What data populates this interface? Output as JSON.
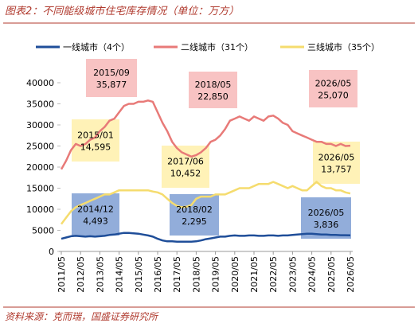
{
  "chart_data": {
    "type": "line",
    "title": "图表2：不同能级城市住宅库存情况（单位：万方）",
    "source": "资料来源：克而瑞，国盛证券研究所",
    "x": [
      "2011/05",
      "2011/08",
      "2011/11",
      "2012/02",
      "2012/05",
      "2012/08",
      "2012/11",
      "2013/02",
      "2013/05",
      "2013/08",
      "2013/11",
      "2014/02",
      "2014/05",
      "2014/08",
      "2014/11",
      "2015/02",
      "2015/05",
      "2015/08",
      "2015/11",
      "2016/02",
      "2016/05",
      "2016/08",
      "2016/11",
      "2017/02",
      "2017/05",
      "2017/08",
      "2017/11",
      "2018/02",
      "2018/05",
      "2018/08",
      "2018/11",
      "2019/02",
      "2019/05",
      "2019/08",
      "2019/11",
      "2020/02",
      "2020/05",
      "2020/08",
      "2020/11",
      "2021/02",
      "2021/05",
      "2021/08",
      "2021/11",
      "2022/02",
      "2022/05",
      "2022/08",
      "2022/11",
      "2023/02",
      "2023/05",
      "2023/08",
      "2023/11",
      "2024/02",
      "2024/05",
      "2024/08",
      "2024/11",
      "2025/02",
      "2025/05",
      "2025/08",
      "2025/11",
      "2026/02",
      "2026/05"
    ],
    "xticks": [
      "2011/05",
      "2012/05",
      "2013/05",
      "2014/05",
      "2015/05",
      "2016/05",
      "2017/05",
      "2018/05",
      "2019/05",
      "2020/05",
      "2021/05",
      "2022/05",
      "2023/05",
      "2024/05",
      "2025/05",
      "2026/05"
    ],
    "ylim": [
      0,
      40000
    ],
    "yticks": [
      0,
      5000,
      10000,
      15000,
      20000,
      25000,
      30000,
      35000,
      40000
    ],
    "grid": false,
    "series": [
      {
        "name": "一线城市（4个）",
        "color": "#1f4e99",
        "values": [
          3000,
          3300,
          3600,
          3700,
          3600,
          3500,
          3600,
          3500,
          3600,
          3700,
          3900,
          4000,
          4200,
          4400,
          4400,
          4300,
          4200,
          4000,
          3800,
          3500,
          3000,
          2600,
          2400,
          2400,
          2300,
          2300,
          2300,
          2295,
          2400,
          2600,
          2900,
          3100,
          3300,
          3500,
          3500,
          3700,
          3800,
          3700,
          3700,
          3800,
          3800,
          3700,
          3700,
          3800,
          3800,
          3700,
          3800,
          3800,
          3900,
          4000,
          4100,
          4200,
          4200,
          4100,
          4000,
          4000,
          3900,
          3900,
          3850,
          3850,
          3836
        ]
      },
      {
        "name": "二线城市（31个）",
        "color": "#e87a78",
        "values": [
          19500,
          21500,
          24000,
          25500,
          25000,
          25500,
          26500,
          27000,
          28500,
          29500,
          31000,
          31500,
          33000,
          34500,
          35000,
          35000,
          35500,
          35500,
          35800,
          35500,
          33000,
          30500,
          28500,
          26000,
          24500,
          23500,
          23000,
          22500,
          22850,
          23500,
          24500,
          26000,
          26500,
          27500,
          29000,
          31000,
          31500,
          32000,
          31500,
          31000,
          32000,
          31500,
          31000,
          32000,
          32200,
          31500,
          30500,
          30000,
          28500,
          28000,
          27500,
          27000,
          26500,
          26000,
          26000,
          25500,
          25500,
          25000,
          25500,
          25000,
          25070
        ]
      },
      {
        "name": "三线城市（35个）",
        "color": "#f5dc6e",
        "values": [
          6500,
          8000,
          9500,
          10500,
          11000,
          11500,
          12000,
          12500,
          13000,
          13500,
          13500,
          14000,
          14500,
          14500,
          14500,
          14500,
          14500,
          14500,
          14500,
          14200,
          14000,
          13500,
          12500,
          11500,
          10800,
          10500,
          10600,
          11000,
          12500,
          13000,
          13000,
          13000,
          13500,
          13500,
          13500,
          14000,
          14500,
          15000,
          15000,
          15000,
          15500,
          16000,
          16000,
          16000,
          16500,
          16000,
          15500,
          15000,
          15500,
          15000,
          14500,
          14500,
          15500,
          16500,
          15500,
          15000,
          15000,
          14500,
          14500,
          14000,
          13757
        ]
      }
    ],
    "annotations": [
      {
        "date": "2015/09",
        "value": "35,877"
      },
      {
        "date": "2015/01",
        "value": "14,595"
      },
      {
        "date": "2014/12",
        "value": "4,493"
      },
      {
        "date": "2018/05",
        "value": "22,850"
      },
      {
        "date": "2017/06",
        "value": "10,452"
      },
      {
        "date": "2018/02",
        "value": "2,295"
      },
      {
        "date": "2026/05",
        "value": "25,070"
      },
      {
        "date": "2026/05",
        "value": "13,757"
      },
      {
        "date": "2026/05",
        "value": "3,836"
      }
    ]
  }
}
